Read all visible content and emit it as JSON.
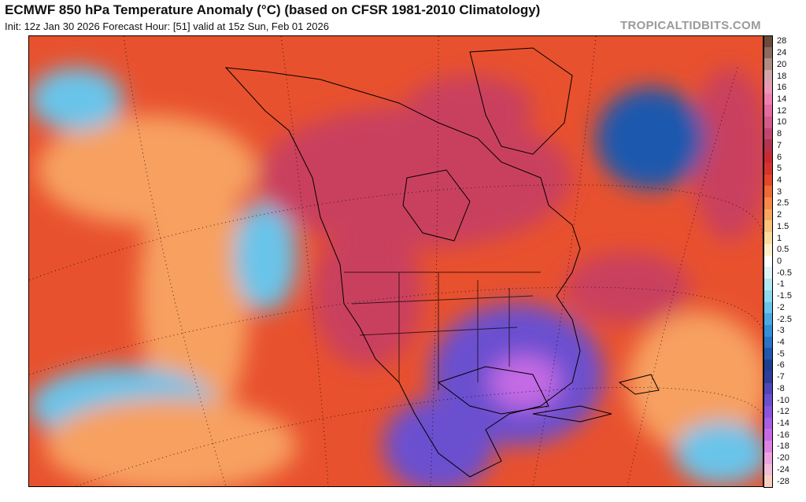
{
  "header": {
    "title": "ECMWF 850 hPa Temperature Anomaly (°C) (based on CFSR 1981-2010 Climatology)",
    "subtitle": "Init: 12z Jan 30 2026   Forecast Hour: [51]   valid at 15z Sun, Feb 01 2026",
    "brand": "TROPICALTIDBITS.COM"
  },
  "colorbar": {
    "levels": [
      {
        "label": "28",
        "color": "#6b4a3c"
      },
      {
        "label": "24",
        "color": "#8c6a5e"
      },
      {
        "label": "20",
        "color": "#b08c82"
      },
      {
        "label": "18",
        "color": "#d4a5a8"
      },
      {
        "label": "16",
        "color": "#e899b6"
      },
      {
        "label": "14",
        "color": "#f07fb0"
      },
      {
        "label": "12",
        "color": "#e46a9f"
      },
      {
        "label": "10",
        "color": "#d45b87"
      },
      {
        "label": "8",
        "color": "#c0466f"
      },
      {
        "label": "7",
        "color": "#b2344f"
      },
      {
        "label": "6",
        "color": "#c62b34"
      },
      {
        "label": "5",
        "color": "#d8322c"
      },
      {
        "label": "4",
        "color": "#e5462a"
      },
      {
        "label": "3",
        "color": "#ee6a35"
      },
      {
        "label": "2.5",
        "color": "#f5894a"
      },
      {
        "label": "2",
        "color": "#f8a65f"
      },
      {
        "label": "1.5",
        "color": "#fbc27c"
      },
      {
        "label": "1",
        "color": "#fcdc9e"
      },
      {
        "label": "0.5",
        "color": "#fdf0c8"
      },
      {
        "label": "0",
        "color": "#ffffff"
      },
      {
        "label": "-0.5",
        "color": "#def4f8"
      },
      {
        "label": "-1",
        "color": "#b4e8f2"
      },
      {
        "label": "-1.5",
        "color": "#8dd9ee"
      },
      {
        "label": "-2",
        "color": "#69c4ea"
      },
      {
        "label": "-2.5",
        "color": "#4aa9e2"
      },
      {
        "label": "-3",
        "color": "#358fd8"
      },
      {
        "label": "-4",
        "color": "#2a73c6"
      },
      {
        "label": "-5",
        "color": "#1f58ad"
      },
      {
        "label": "-6",
        "color": "#1d3f8f"
      },
      {
        "label": "-7",
        "color": "#2e3d9c"
      },
      {
        "label": "-8",
        "color": "#4e47b7"
      },
      {
        "label": "-10",
        "color": "#6a4fcf"
      },
      {
        "label": "-12",
        "color": "#8a55dc"
      },
      {
        "label": "-14",
        "color": "#a75fe2"
      },
      {
        "label": "-16",
        "color": "#c46be4"
      },
      {
        "label": "-18",
        "color": "#dc83e2"
      },
      {
        "label": "-20",
        "color": "#eba3e0"
      },
      {
        "label": "-24",
        "color": "#f3bcd8"
      },
      {
        "label": "-28",
        "color": "#f7cfc0"
      }
    ]
  },
  "map": {
    "field_colors": {
      "ocean_warm": "#e8512e",
      "ocean_mild": "#f7a060",
      "north_hot": "#c9405e",
      "cold_core": "#6a4fcf",
      "cold_pink": "#c46be4",
      "atl_cold": "#1f58ad",
      "pac_blue": "#69c4ea",
      "coast_line": "#000000"
    }
  }
}
